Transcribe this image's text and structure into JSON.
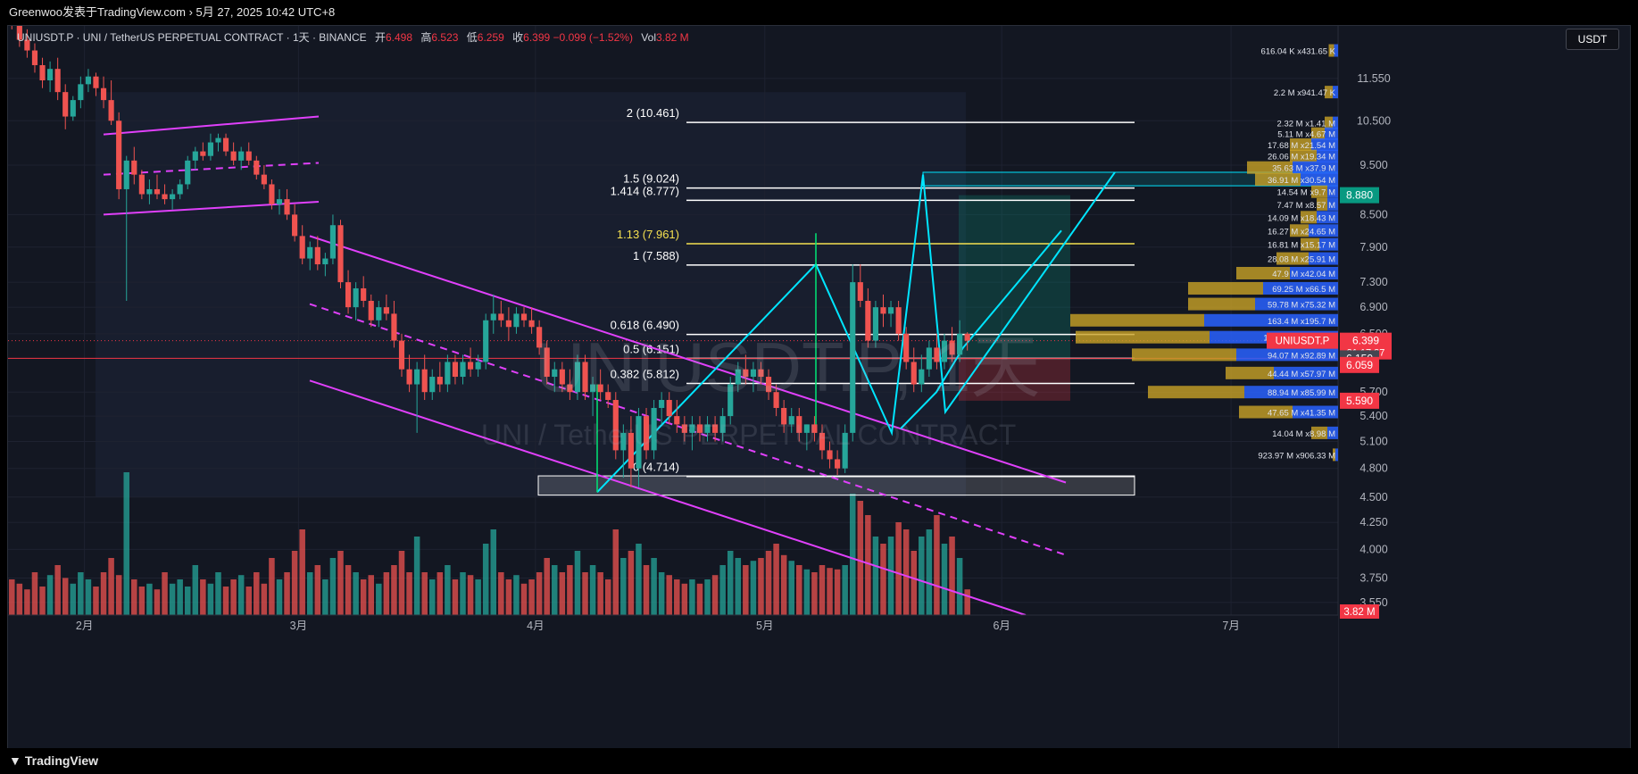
{
  "topbar": {
    "text": "Greenwoo发表于TradingView.com › 5月 27, 2025 10:42 UTC+8"
  },
  "header": {
    "symbol_desc": "UNIUSDT.P · UNI / TetherUS PERPETUAL CONTRACT · 1天 · BINANCE",
    "open_label": "开",
    "open": "6.498",
    "high_label": "高",
    "high": "6.523",
    "low_label": "低",
    "low": "6.259",
    "close_label": "收",
    "close": "6.399",
    "change": "−0.099 (−1.52%)",
    "vol_label": "Vol",
    "vol": "3.82 M"
  },
  "currency_button": "USDT",
  "watermark": {
    "symbol": "UNIUSDT.P, 1天",
    "desc": "UNI / TetherUS PERPETUAL CONTRACT"
  },
  "brand": "TradingView",
  "colors": {
    "up": "#26a69a",
    "down": "#ef5350",
    "bg": "#131722",
    "channel": "#e040fb",
    "fib": "#ffffff",
    "fib_highlight": "#f5e050",
    "cyan": "#00e5ff",
    "green": "#4caf50",
    "profile_gold": "#c9a227",
    "profile_blue": "#2962ff"
  },
  "chart_data": {
    "type": "candlestick",
    "title": "UNIUSDT.P · UNI / TetherUS PERPETUAL CONTRACT · 1天 · BINANCE",
    "y_scale": "log",
    "ylim": [
      3.45,
      13.0
    ],
    "y_ticks": [
      "11.550",
      "10.500",
      "9.500",
      "8.500",
      "7.900",
      "7.300",
      "6.900",
      "6.500",
      "5.700",
      "5.400",
      "5.100",
      "4.800",
      "4.500",
      "4.250",
      "4.000",
      "3.750",
      "3.550"
    ],
    "x_ticks": [
      {
        "label": "2月",
        "date": "2025-02-01"
      },
      {
        "label": "3月",
        "date": "2025-03-01"
      },
      {
        "label": "4月",
        "date": "2025-04-01"
      },
      {
        "label": "5月",
        "date": "2025-05-01"
      },
      {
        "label": "6月",
        "date": "2025-06-01"
      },
      {
        "label": "7月",
        "date": "2025-07-01"
      }
    ],
    "x_start_date": "2025-01-22",
    "x_end_date": "2025-07-15",
    "candles": [
      [
        13.6,
        13.9,
        12.9,
        13.0
      ],
      [
        13.0,
        13.3,
        12.4,
        12.6
      ],
      [
        12.6,
        12.9,
        12.1,
        12.3
      ],
      [
        12.3,
        12.5,
        11.7,
        11.9
      ],
      [
        11.9,
        12.1,
        11.3,
        11.5
      ],
      [
        11.5,
        12.0,
        11.2,
        11.8
      ],
      [
        11.8,
        12.1,
        11.0,
        11.2
      ],
      [
        11.2,
        11.4,
        10.3,
        10.6
      ],
      [
        10.6,
        11.1,
        10.5,
        11.0
      ],
      [
        11.0,
        11.6,
        10.8,
        11.4
      ],
      [
        11.4,
        11.8,
        11.2,
        11.6
      ],
      [
        11.6,
        11.7,
        11.1,
        11.3
      ],
      [
        11.3,
        11.6,
        10.8,
        11.0
      ],
      [
        11.0,
        11.5,
        10.4,
        10.5
      ],
      [
        10.5,
        10.7,
        8.8,
        9.0
      ],
      [
        9.0,
        9.7,
        7.0,
        9.6
      ],
      [
        9.6,
        9.9,
        9.1,
        9.3
      ],
      [
        9.3,
        9.4,
        8.8,
        8.9
      ],
      [
        8.9,
        9.2,
        8.7,
        9.0
      ],
      [
        9.0,
        9.3,
        8.8,
        8.9
      ],
      [
        8.9,
        9.1,
        8.7,
        8.8
      ],
      [
        8.8,
        9.0,
        8.6,
        8.9
      ],
      [
        8.9,
        9.2,
        8.8,
        9.1
      ],
      [
        9.1,
        9.7,
        9.0,
        9.6
      ],
      [
        9.6,
        9.9,
        9.4,
        9.8
      ],
      [
        9.8,
        10.0,
        9.6,
        9.7
      ],
      [
        9.7,
        10.2,
        9.6,
        10.0
      ],
      [
        10.0,
        10.2,
        9.8,
        10.1
      ],
      [
        10.1,
        10.2,
        9.7,
        9.8
      ],
      [
        9.8,
        10.0,
        9.5,
        9.6
      ],
      [
        9.6,
        9.9,
        9.4,
        9.8
      ],
      [
        9.8,
        10.0,
        9.5,
        9.6
      ],
      [
        9.6,
        9.7,
        9.2,
        9.3
      ],
      [
        9.3,
        9.5,
        9.0,
        9.1
      ],
      [
        9.1,
        9.2,
        8.6,
        8.7
      ],
      [
        8.7,
        9.0,
        8.5,
        8.8
      ],
      [
        8.8,
        9.0,
        8.4,
        8.5
      ],
      [
        8.5,
        8.7,
        8.0,
        8.1
      ],
      [
        8.1,
        8.3,
        7.6,
        7.7
      ],
      [
        7.7,
        8.0,
        7.5,
        7.9
      ],
      [
        7.9,
        8.1,
        7.5,
        7.6
      ],
      [
        7.6,
        7.8,
        7.4,
        7.7
      ],
      [
        7.7,
        8.5,
        7.6,
        8.3
      ],
      [
        8.3,
        8.4,
        7.2,
        7.3
      ],
      [
        7.3,
        7.5,
        6.8,
        6.9
      ],
      [
        6.9,
        7.3,
        6.7,
        7.2
      ],
      [
        7.2,
        7.4,
        6.9,
        7.0
      ],
      [
        7.0,
        7.1,
        6.6,
        6.7
      ],
      [
        6.7,
        7.0,
        6.6,
        6.9
      ],
      [
        6.9,
        7.1,
        6.7,
        6.8
      ],
      [
        6.8,
        7.0,
        6.3,
        6.4
      ],
      [
        6.4,
        6.5,
        5.9,
        6.0
      ],
      [
        6.0,
        6.2,
        5.7,
        5.8
      ],
      [
        5.8,
        6.1,
        5.2,
        6.0
      ],
      [
        6.0,
        6.2,
        5.6,
        5.7
      ],
      [
        5.7,
        6.0,
        5.6,
        5.9
      ],
      [
        5.9,
        6.1,
        5.7,
        5.8
      ],
      [
        5.8,
        6.2,
        5.7,
        6.1
      ],
      [
        6.1,
        6.2,
        5.8,
        5.9
      ],
      [
        5.9,
        6.2,
        5.8,
        6.1
      ],
      [
        6.1,
        6.3,
        5.9,
        6.0
      ],
      [
        6.0,
        6.2,
        5.9,
        6.1
      ],
      [
        6.1,
        6.8,
        6.0,
        6.7
      ],
      [
        6.7,
        7.1,
        6.5,
        6.8
      ],
      [
        6.8,
        7.0,
        6.6,
        6.7
      ],
      [
        6.7,
        6.9,
        6.4,
        6.6
      ],
      [
        6.6,
        6.9,
        6.5,
        6.8
      ],
      [
        6.8,
        6.9,
        6.6,
        6.7
      ],
      [
        6.7,
        6.9,
        6.5,
        6.6
      ],
      [
        6.6,
        6.7,
        6.2,
        6.3
      ],
      [
        6.3,
        6.4,
        5.8,
        5.9
      ],
      [
        5.9,
        6.1,
        5.7,
        6.0
      ],
      [
        6.0,
        6.1,
        5.7,
        5.8
      ],
      [
        5.8,
        6.0,
        5.6,
        5.7
      ],
      [
        5.7,
        6.2,
        5.6,
        6.1
      ],
      [
        6.1,
        6.2,
        5.6,
        5.7
      ],
      [
        5.7,
        5.9,
        5.4,
        5.8
      ],
      [
        5.8,
        6.0,
        5.6,
        5.7
      ],
      [
        5.7,
        5.8,
        5.5,
        5.6
      ],
      [
        5.6,
        5.7,
        4.9,
        5.0
      ],
      [
        5.0,
        5.3,
        4.7,
        5.2
      ],
      [
        5.2,
        5.4,
        4.6,
        4.8
      ],
      [
        4.8,
        5.5,
        4.6,
        5.4
      ],
      [
        5.4,
        5.5,
        4.9,
        5.0
      ],
      [
        5.0,
        5.6,
        4.9,
        5.5
      ],
      [
        5.5,
        5.7,
        5.3,
        5.6
      ],
      [
        5.6,
        5.7,
        5.3,
        5.4
      ],
      [
        5.4,
        5.6,
        5.2,
        5.3
      ],
      [
        5.3,
        5.4,
        5.1,
        5.2
      ],
      [
        5.2,
        5.4,
        5.0,
        5.3
      ],
      [
        5.3,
        5.4,
        5.1,
        5.2
      ],
      [
        5.2,
        5.4,
        5.1,
        5.3
      ],
      [
        5.3,
        5.4,
        5.1,
        5.2
      ],
      [
        5.2,
        5.5,
        5.1,
        5.4
      ],
      [
        5.4,
        5.9,
        5.3,
        5.8
      ],
      [
        5.8,
        6.1,
        5.7,
        6.0
      ],
      [
        6.0,
        6.2,
        5.8,
        5.9
      ],
      [
        5.9,
        6.1,
        5.7,
        6.0
      ],
      [
        6.0,
        6.1,
        5.8,
        5.9
      ],
      [
        5.9,
        6.0,
        5.6,
        5.7
      ],
      [
        5.7,
        5.8,
        5.4,
        5.5
      ],
      [
        5.5,
        5.6,
        5.2,
        5.3
      ],
      [
        5.3,
        5.5,
        5.2,
        5.4
      ],
      [
        5.4,
        5.5,
        5.1,
        5.2
      ],
      [
        5.2,
        5.3,
        5.0,
        5.3
      ],
      [
        5.3,
        5.4,
        5.1,
        5.2
      ],
      [
        5.2,
        5.3,
        4.9,
        5.0
      ],
      [
        5.0,
        5.1,
        4.8,
        4.9
      ],
      [
        4.9,
        5.0,
        4.73,
        4.8
      ],
      [
        4.8,
        5.3,
        4.75,
        5.2
      ],
      [
        5.2,
        7.6,
        5.1,
        7.3
      ],
      [
        7.3,
        7.6,
        6.9,
        7.0
      ],
      [
        7.0,
        7.2,
        6.3,
        6.4
      ],
      [
        6.4,
        7.0,
        6.3,
        6.9
      ],
      [
        6.9,
        7.1,
        6.6,
        6.8
      ],
      [
        6.8,
        7.0,
        6.6,
        6.9
      ],
      [
        6.9,
        7.0,
        6.4,
        6.5
      ],
      [
        6.5,
        6.6,
        6.0,
        6.1
      ],
      [
        6.1,
        6.3,
        5.7,
        5.8
      ],
      [
        5.8,
        6.2,
        5.7,
        6.0
      ],
      [
        6.0,
        6.4,
        5.9,
        6.3
      ],
      [
        6.3,
        6.5,
        6.0,
        6.1
      ],
      [
        6.1,
        6.5,
        6.0,
        6.4
      ],
      [
        6.4,
        6.6,
        6.1,
        6.2
      ],
      [
        6.2,
        6.7,
        6.1,
        6.5
      ],
      [
        6.5,
        6.523,
        6.259,
        6.399
      ]
    ],
    "volume_ylim": [
      0,
      1
    ],
    "volume_relative": [
      0.25,
      0.22,
      0.18,
      0.3,
      0.2,
      0.28,
      0.35,
      0.26,
      0.22,
      0.3,
      0.25,
      0.2,
      0.3,
      0.4,
      0.28,
      1.0,
      0.25,
      0.2,
      0.22,
      0.18,
      0.3,
      0.22,
      0.25,
      0.2,
      0.35,
      0.25,
      0.22,
      0.3,
      0.2,
      0.25,
      0.28,
      0.2,
      0.3,
      0.22,
      0.4,
      0.25,
      0.3,
      0.45,
      0.6,
      0.3,
      0.35,
      0.25,
      0.4,
      0.45,
      0.35,
      0.3,
      0.25,
      0.28,
      0.22,
      0.3,
      0.35,
      0.45,
      0.3,
      0.55,
      0.3,
      0.25,
      0.3,
      0.35,
      0.25,
      0.3,
      0.28,
      0.25,
      0.5,
      0.6,
      0.3,
      0.25,
      0.28,
      0.22,
      0.25,
      0.3,
      0.4,
      0.35,
      0.3,
      0.35,
      0.45,
      0.3,
      0.35,
      0.3,
      0.25,
      0.6,
      0.4,
      0.45,
      0.5,
      0.35,
      0.4,
      0.3,
      0.28,
      0.25,
      0.22,
      0.25,
      0.22,
      0.25,
      0.28,
      0.35,
      0.45,
      0.4,
      0.35,
      0.38,
      0.4,
      0.45,
      0.5,
      0.42,
      0.38,
      0.35,
      0.32,
      0.3,
      0.35,
      0.33,
      0.32,
      0.35,
      0.85,
      0.8,
      0.7,
      0.55,
      0.5,
      0.55,
      0.65,
      0.6,
      0.45,
      0.55,
      0.6,
      0.7,
      0.5,
      0.55,
      0.4,
      0.18
    ],
    "last_volume": "3.82 M",
    "fib_levels": [
      {
        "ratio": "2",
        "label": "2 (10.461)",
        "price": 10.461
      },
      {
        "ratio": "1.5",
        "label": "1.5 (9.024)",
        "price": 9.024
      },
      {
        "ratio": "1.414",
        "label": "1.414 (8.777)",
        "price": 8.777
      },
      {
        "ratio": "1.13",
        "label": "1.13 (7.961)",
        "price": 7.961,
        "highlight": true
      },
      {
        "ratio": "1",
        "label": "1 (7.588)",
        "price": 7.588
      },
      {
        "ratio": "0.618",
        "label": "0.618 (6.490)",
        "price": 6.49
      },
      {
        "ratio": "0.5",
        "label": "0.5 (6.151)",
        "price": 6.151
      },
      {
        "ratio": "0.382",
        "label": "0.382 (5.812)",
        "price": 5.812
      },
      {
        "ratio": "0",
        "label": "0 (4.714)",
        "price": 4.714
      }
    ],
    "price_tags": [
      {
        "label": "UNIUSDT.P",
        "value": "6.399",
        "countdown": "21:17:37",
        "color": "#f23645",
        "price": 6.399
      },
      {
        "label": "",
        "value": "8.880",
        "color": "#089981",
        "price": 8.88
      },
      {
        "label": "",
        "value": "6.150",
        "color": "#434651",
        "price": 6.15
      },
      {
        "label": "",
        "value": "6.059",
        "color": "#f23645",
        "price": 6.059
      },
      {
        "label": "",
        "value": "5.590",
        "color": "#f23645",
        "price": 5.59
      }
    ],
    "volume_profile": [
      {
        "price": 12.3,
        "text": "616.04 K x431.65 K",
        "a": 0.02,
        "b": 0.015
      },
      {
        "price": 11.2,
        "text": "2.2 M x941.47 K",
        "a": 0.03,
        "b": 0.02
      },
      {
        "price": 10.45,
        "text": "2.32 M x1.41 M",
        "a": 0.03,
        "b": 0.02
      },
      {
        "price": 10.2,
        "text": "5.11 M x4.67 M",
        "a": 0.05,
        "b": 0.05
      },
      {
        "price": 9.95,
        "text": "17.68 M x21.54 M",
        "a": 0.08,
        "b": 0.1
      },
      {
        "price": 9.7,
        "text": "26.06 M x19.34 M",
        "a": 0.1,
        "b": 0.08
      },
      {
        "price": 9.45,
        "text": "35.63 M x37.9 M",
        "a": 0.17,
        "b": 0.17
      },
      {
        "price": 9.2,
        "text": "36.91 M x30.54 M",
        "a": 0.17,
        "b": 0.14
      },
      {
        "price": 8.95,
        "text": "14.54 M x9.7 M",
        "a": 0.06,
        "b": 0.04
      },
      {
        "price": 8.7,
        "text": "7.47 M x8.57 M",
        "a": 0.04,
        "b": 0.04
      },
      {
        "price": 8.45,
        "text": "14.09 M x18.43 M",
        "a": 0.06,
        "b": 0.08
      },
      {
        "price": 8.2,
        "text": "16.27 M x24.65 M",
        "a": 0.07,
        "b": 0.11
      },
      {
        "price": 7.95,
        "text": "16.81 M x15.17 M",
        "a": 0.07,
        "b": 0.07
      },
      {
        "price": 7.7,
        "text": "28.08 M x25.91 M",
        "a": 0.12,
        "b": 0.11
      },
      {
        "price": 7.45,
        "text": "47.9 M x42.04 M",
        "a": 0.2,
        "b": 0.18
      },
      {
        "price": 7.2,
        "text": "69.25 M x66.5 M",
        "a": 0.28,
        "b": 0.28
      },
      {
        "price": 6.95,
        "text": "59.78 M x75.32 M",
        "a": 0.25,
        "b": 0.31
      },
      {
        "price": 6.7,
        "text": "163.4 M x195.7 M",
        "a": 0.5,
        "b": 0.5
      },
      {
        "price": 6.45,
        "text": "124.74 M x117.9 M",
        "a": 0.5,
        "b": 0.48
      },
      {
        "price": 6.2,
        "text": "94.07 M x92.89 M",
        "a": 0.39,
        "b": 0.38
      },
      {
        "price": 5.95,
        "text": "44.44 M x57.97 M",
        "a": 0.18,
        "b": 0.24
      },
      {
        "price": 5.7,
        "text": "88.94 M x85.99 M",
        "a": 0.36,
        "b": 0.35
      },
      {
        "price": 5.45,
        "text": "47.65 M x41.35 M",
        "a": 0.2,
        "b": 0.17
      },
      {
        "price": 5.2,
        "text": "14.04 M x8.98 M",
        "a": 0.06,
        "b": 0.04
      },
      {
        "price": 4.95,
        "text": "923.97 M x906.33 M",
        "a": 0.01,
        "b": 0.01
      }
    ],
    "annotations": [
      {
        "type": "channel",
        "from": [
          "2025-02-01",
          10.2
        ],
        "to": [
          "2025-03-01",
          10.5
        ],
        "note": "upper rising channel line"
      },
      {
        "type": "descending_channel"
      },
      {
        "type": "fib_extension"
      },
      {
        "type": "zigzag"
      },
      {
        "type": "long_position"
      }
    ]
  }
}
